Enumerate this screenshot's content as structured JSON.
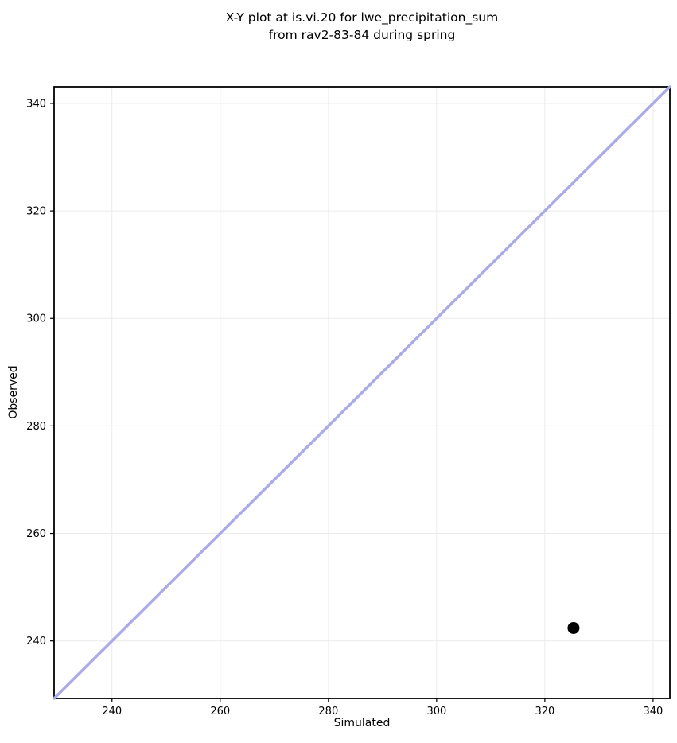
{
  "page": {
    "background": "#ffffff"
  },
  "chart_data": {
    "type": "scatter",
    "title_line1": "X-Y plot at is.vi.20 for lwe_precipitation_sum",
    "title_line2": "from rav2-83-84 during spring",
    "title": "X-Y plot at is.vi.20 for lwe_precipitation_sum\nfrom rav2-83-84 during spring",
    "xlabel": "Simulated",
    "ylabel": "Observed",
    "xlim": [
      229.3,
      343.1
    ],
    "ylim": [
      229.3,
      343.1
    ],
    "xticks": [
      240,
      260,
      280,
      300,
      320,
      340
    ],
    "yticks": [
      240,
      260,
      280,
      300,
      320,
      340
    ],
    "grid": true,
    "legend": "none",
    "points": [
      {
        "x": 325.3,
        "y": 242.4
      }
    ],
    "point_color": "#000000",
    "point_radius": 7.5,
    "identity_line": {
      "name": "1:1 line",
      "x1": 229.3,
      "y1": 229.3,
      "x2": 343.1,
      "y2": 343.1,
      "color": "#aaaaee",
      "width": 3.5
    },
    "grid_color": "#ebebeb",
    "spine_color": "#000000",
    "text_color": "#000000",
    "tick_label_font_size": 13
  }
}
